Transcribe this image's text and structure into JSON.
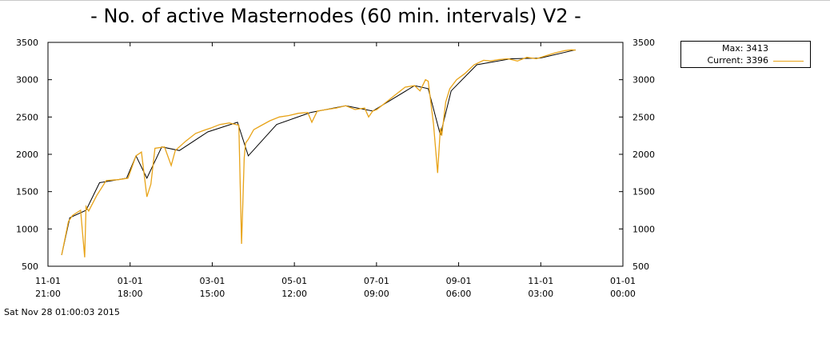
{
  "page": {
    "title": "- No. of active Masternodes (60 min. intervals) V2 -",
    "timestamp": "Sat Nov 28 01:00:03 2015"
  },
  "legend": {
    "max_label": "Max: 3413",
    "current_label": "Current: 3396"
  },
  "colors": {
    "series": "#e8a317",
    "trend": "#000000",
    "axis": "#000000"
  },
  "chart_data": {
    "type": "line",
    "title": "- No. of active Masternodes (60 min. intervals) V2 -",
    "xlabel": "",
    "ylabel": "",
    "ylim": [
      500,
      3500
    ],
    "yticks": [
      500,
      1000,
      1500,
      2000,
      2500,
      3000,
      3500
    ],
    "right_axis_ticks": [
      500,
      1000,
      1500,
      2000,
      2500,
      3000,
      3500
    ],
    "x_tick_labels": [
      {
        "date": "11-01",
        "time": "21:00"
      },
      {
        "date": "01-01",
        "time": "18:00"
      },
      {
        "date": "03-01",
        "time": "15:00"
      },
      {
        "date": "05-01",
        "time": "12:00"
      },
      {
        "date": "07-01",
        "time": "09:00"
      },
      {
        "date": "09-01",
        "time": "06:00"
      },
      {
        "date": "11-01",
        "time": "03:00"
      },
      {
        "date": "01-01",
        "time": "00:00"
      }
    ],
    "grid": false,
    "legend_position": "right-top",
    "series": [
      {
        "name": "Current",
        "x": [
          "2014-11-12",
          "2014-11-17",
          "2014-11-20",
          "2014-11-26",
          "2014-11-29",
          "2014-11-30",
          "2014-12-02",
          "2014-12-08",
          "2014-12-15",
          "2014-12-24",
          "2014-12-31",
          "2015-01-06",
          "2015-01-10",
          "2015-01-14",
          "2015-01-17",
          "2015-01-20",
          "2015-01-27",
          "2015-02-01",
          "2015-02-04",
          "2015-02-07",
          "2015-02-12",
          "2015-02-19",
          "2015-02-25",
          "2015-03-02",
          "2015-03-09",
          "2015-03-16",
          "2015-03-23",
          "2015-03-25",
          "2015-03-26",
          "2015-03-27",
          "2015-03-28",
          "2015-03-30",
          "2015-04-03",
          "2015-04-08",
          "2015-04-15",
          "2015-04-22",
          "2015-04-29",
          "2015-05-06",
          "2015-05-13",
          "2015-05-16",
          "2015-05-20",
          "2015-05-27",
          "2015-06-03",
          "2015-06-10",
          "2015-06-17",
          "2015-06-24",
          "2015-06-27",
          "2015-06-30",
          "2015-07-03",
          "2015-07-10",
          "2015-07-17",
          "2015-07-24",
          "2015-07-31",
          "2015-08-04",
          "2015-08-08",
          "2015-08-10",
          "2015-08-14",
          "2015-08-17",
          "2015-08-19",
          "2015-08-20",
          "2015-08-23",
          "2015-08-26",
          "2015-08-31",
          "2015-09-06",
          "2015-09-13",
          "2015-09-20",
          "2015-09-25",
          "2015-10-01",
          "2015-10-08",
          "2015-10-15",
          "2015-10-22",
          "2015-10-29",
          "2015-11-05",
          "2015-11-12",
          "2015-11-19",
          "2015-11-24",
          "2015-11-27"
        ],
        "y": [
          650,
          1100,
          1180,
          1250,
          620,
          1300,
          1240,
          1450,
          1650,
          1660,
          1680,
          1980,
          2030,
          1430,
          1600,
          2080,
          2100,
          1850,
          2050,
          2100,
          2180,
          2280,
          2320,
          2350,
          2400,
          2420,
          2390,
          800,
          1380,
          1950,
          2150,
          2200,
          2330,
          2380,
          2450,
          2500,
          2520,
          2550,
          2560,
          2430,
          2580,
          2600,
          2620,
          2650,
          2600,
          2620,
          2500,
          2580,
          2600,
          2700,
          2800,
          2900,
          2920,
          2850,
          3000,
          2980,
          2400,
          1750,
          2350,
          2250,
          2700,
          2880,
          3000,
          3080,
          3200,
          3260,
          3250,
          3270,
          3280,
          3250,
          3300,
          3280,
          3320,
          3360,
          3390,
          3400,
          3396
        ]
      },
      {
        "name": "",
        "x": [
          "2014-11-12",
          "2014-11-18",
          "2014-11-30",
          "2014-12-10",
          "2014-12-30",
          "2015-01-06",
          "2015-01-14",
          "2015-01-25",
          "2015-02-07",
          "2015-02-28",
          "2015-03-22",
          "2015-03-30",
          "2015-04-20",
          "2015-05-15",
          "2015-06-10",
          "2015-06-30",
          "2015-07-31",
          "2015-08-10",
          "2015-08-19",
          "2015-08-27",
          "2015-09-15",
          "2015-10-10",
          "2015-11-01",
          "2015-11-27"
        ],
        "y": [
          650,
          1150,
          1250,
          1620,
          1680,
          1980,
          1680,
          2100,
          2050,
          2300,
          2430,
          1980,
          2400,
          2560,
          2650,
          2580,
          2920,
          2880,
          2260,
          2850,
          3200,
          3280,
          3290,
          3400
        ]
      }
    ]
  }
}
